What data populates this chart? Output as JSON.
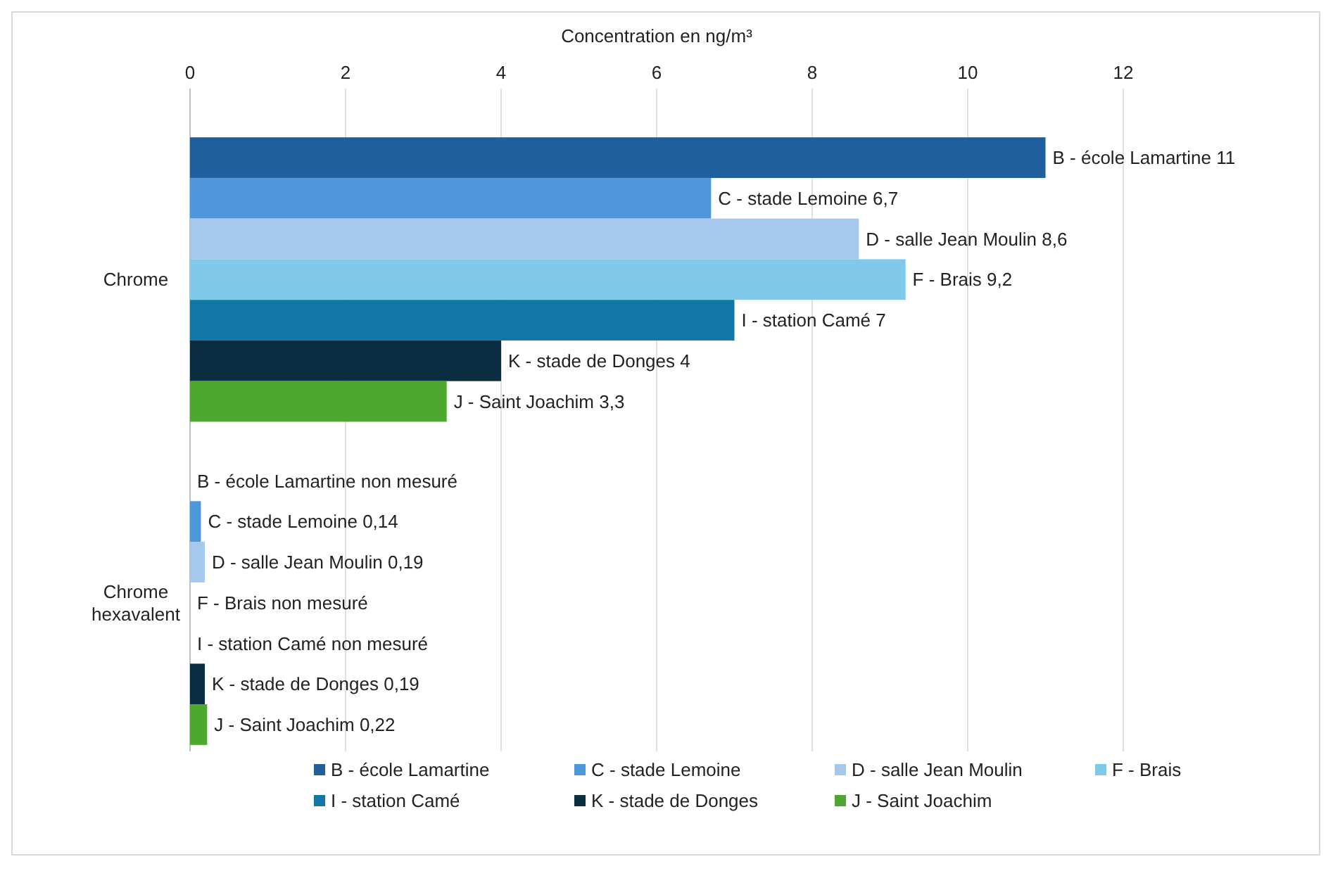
{
  "chart_data": {
    "type": "bar",
    "orientation": "horizontal",
    "xlabel": "Concentration en ng/m³",
    "categories": [
      "Chrome",
      "Chrome hexavalent"
    ],
    "series": [
      {
        "name": "B - école Lamartine",
        "color": "#1f5f9e",
        "values": [
          11,
          null
        ],
        "value_labels": [
          "B - école Lamartine 11",
          "B - école Lamartine  non mesuré"
        ]
      },
      {
        "name": "C - stade Lemoine",
        "color": "#4f97db",
        "values": [
          6.7,
          0.14
        ],
        "value_labels": [
          "C - stade Lemoine 6,7",
          "C - stade Lemoine   0,14"
        ]
      },
      {
        "name": "D - salle Jean Moulin",
        "color": "#a6c8ec",
        "values": [
          8.6,
          0.19
        ],
        "value_labels": [
          "D - salle Jean Moulin 8,6",
          "D - salle Jean Moulin 0,19"
        ]
      },
      {
        "name": "F - Brais",
        "color": "#7fc9ea",
        "values": [
          9.2,
          null
        ],
        "value_labels": [
          "F - Brais 9,2",
          "F - Brais  non mesuré"
        ]
      },
      {
        "name": "I - station Camé",
        "color": "#1177a6",
        "values": [
          7,
          null
        ],
        "value_labels": [
          "I - station Camé 7",
          "I - station Camé  non mesuré"
        ]
      },
      {
        "name": "K - stade de Donges",
        "color": "#0b2e42",
        "values": [
          4,
          0.19
        ],
        "value_labels": [
          "K - stade de Donges 4",
          "K - stade de Donges 0,19"
        ]
      },
      {
        "name": "J - Saint Joachim",
        "color": "#4ea72e",
        "values": [
          3.3,
          0.22
        ],
        "value_labels": [
          "J - Saint Joachim 3,3",
          "J - Saint Joachim 0,22"
        ]
      }
    ],
    "xlim": [
      0,
      12
    ],
    "xticks": [
      0,
      2,
      4,
      6,
      8,
      10,
      12
    ],
    "grid": "x",
    "legend": "bottom"
  }
}
